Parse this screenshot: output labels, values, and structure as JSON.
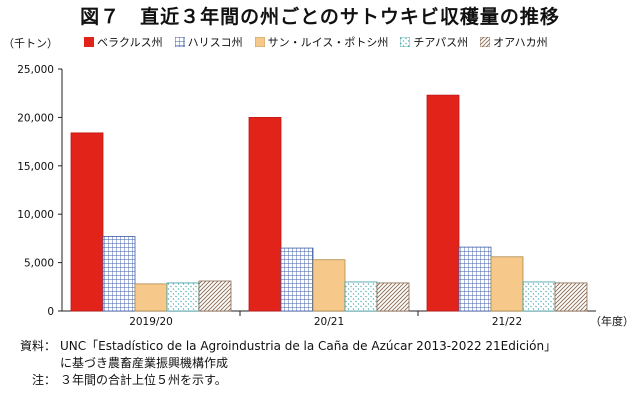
{
  "title": "図７　直近３年間の州ごとのサトウキビ収穫量の推移",
  "y_unit": "（千トン）",
  "x_unit": "（年度）",
  "legend": [
    {
      "label": "ベラクルス州",
      "color": "#e2231a",
      "pattern": "solid"
    },
    {
      "label": "ハリスコ州",
      "color": "#3a5ba8",
      "pattern": "grid"
    },
    {
      "label": "サン・ルイス・ポトシ州",
      "color": "#f6c98a",
      "pattern": "solid"
    },
    {
      "label": "チアパス州",
      "color": "#3aa0a8",
      "pattern": "dots"
    },
    {
      "label": "オアハカ州",
      "color": "#8a6a52",
      "pattern": "diagonal"
    }
  ],
  "chart_data": {
    "type": "bar",
    "title": "直近３年間の州ごとのサトウキビ収穫量の推移",
    "xlabel": "（年度）",
    "ylabel": "（千トン）",
    "categories": [
      "2019/20",
      "20/21",
      "21/22"
    ],
    "ylim": [
      0,
      25000
    ],
    "yticks": [
      0,
      5000,
      10000,
      15000,
      20000,
      25000
    ],
    "ytick_labels": [
      "0",
      "5,000",
      "10,000",
      "15,000",
      "20,000",
      "25,000"
    ],
    "series": [
      {
        "name": "ベラクルス州",
        "values": [
          18400,
          20000,
          22300
        ]
      },
      {
        "name": "ハリスコ州",
        "values": [
          7700,
          6500,
          6600
        ]
      },
      {
        "name": "サン・ルイス・ポトシ州",
        "values": [
          2800,
          5300,
          5600
        ]
      },
      {
        "name": "チアパス州",
        "values": [
          2900,
          3000,
          3000
        ]
      },
      {
        "name": "オアハカ州",
        "values": [
          3100,
          2900,
          2900
        ]
      }
    ]
  },
  "notes": [
    {
      "label": "資料：",
      "lines": [
        "UNC「Estadístico de la Agroindustria de la Caña de Azúcar 2013-2022 21Edición」",
        "に基づき農畜産業振興機構作成"
      ]
    },
    {
      "label": "注：",
      "lines": [
        "３年間の合計上位５州を示す。"
      ]
    }
  ]
}
